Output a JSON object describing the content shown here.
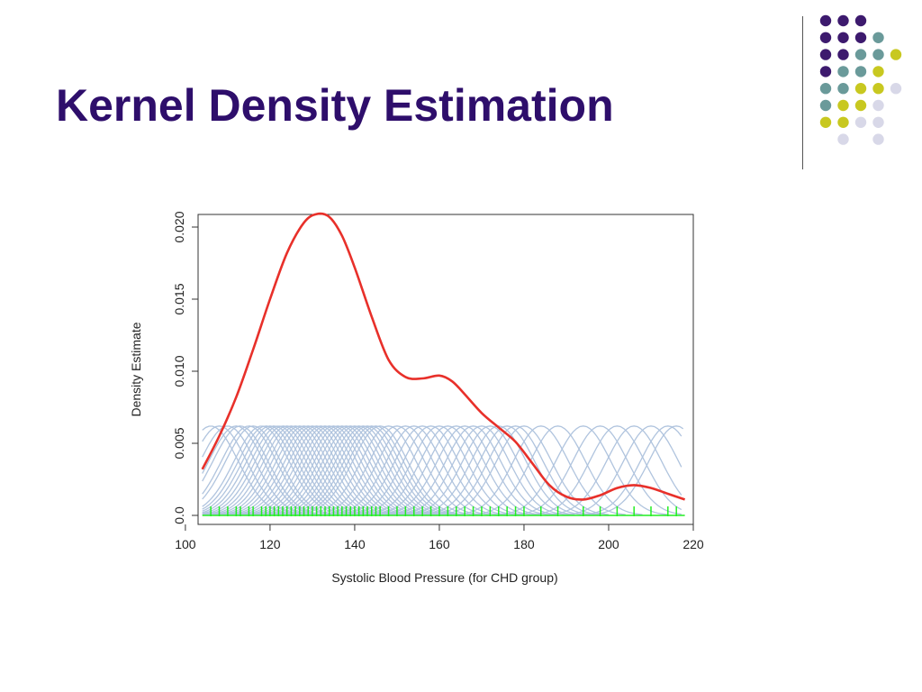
{
  "slide": {
    "title": "Kernel Density Estimation"
  },
  "decoration": {
    "dot_colors": [
      "#3d1a6e",
      "#6a9a9a",
      "#c8c820",
      "#d8d8e8"
    ]
  },
  "chart_data": {
    "type": "line",
    "xlabel": "Systolic Blood Pressure (for CHD group)",
    "ylabel": "Density Estimate",
    "xlim": [
      103,
      220
    ],
    "ylim": [
      0,
      0.0215
    ],
    "x_ticks": [
      100,
      120,
      140,
      160,
      180,
      200,
      220
    ],
    "y_ticks": [
      0.0,
      0.005,
      0.01,
      0.015,
      0.02
    ],
    "y_tick_labels": [
      "0.0",
      "0.005",
      "0.010",
      "0.015",
      "0.020"
    ],
    "grid": false,
    "series": [
      {
        "role": "kde_curve",
        "color": "#e8302a",
        "x": [
          104,
          108,
          112,
          116,
          120,
          124,
          128,
          131,
          134,
          137,
          140,
          144,
          148,
          152,
          156,
          160,
          163,
          166,
          170,
          174,
          178,
          182,
          186,
          190,
          194,
          198,
          202,
          206,
          210,
          214,
          218
        ],
        "y": [
          0.0032,
          0.0055,
          0.0082,
          0.0115,
          0.015,
          0.0182,
          0.0203,
          0.0209,
          0.0207,
          0.0194,
          0.0172,
          0.0138,
          0.0108,
          0.0096,
          0.0095,
          0.0097,
          0.0093,
          0.0084,
          0.0071,
          0.0061,
          0.0051,
          0.0036,
          0.0021,
          0.0013,
          0.0011,
          0.0014,
          0.0019,
          0.0021,
          0.0019,
          0.0015,
          0.0011
        ]
      }
    ],
    "kernel_bumps": {
      "color": "#b0c4de",
      "peak": 0.0062,
      "centers": [
        106,
        108,
        110,
        112,
        113,
        115,
        116,
        118,
        119,
        120,
        121,
        122,
        123,
        124,
        125,
        126,
        127,
        128,
        129,
        130,
        131,
        132,
        133,
        134,
        135,
        136,
        137,
        138,
        139,
        140,
        141,
        142,
        143,
        144,
        145,
        146,
        148,
        150,
        152,
        154,
        156,
        158,
        160,
        162,
        164,
        166,
        168,
        170,
        172,
        174,
        176,
        178,
        180,
        184,
        188,
        194,
        198,
        202,
        206,
        210,
        214,
        216
      ]
    },
    "rug": {
      "color": "#22ee22",
      "x": [
        106,
        108,
        110,
        112,
        113,
        115,
        116,
        118,
        119,
        120,
        121,
        122,
        123,
        124,
        125,
        126,
        127,
        128,
        129,
        130,
        131,
        132,
        133,
        134,
        135,
        136,
        137,
        138,
        139,
        140,
        141,
        142,
        143,
        144,
        145,
        146,
        148,
        150,
        152,
        154,
        156,
        158,
        160,
        162,
        164,
        166,
        168,
        170,
        172,
        174,
        176,
        178,
        180,
        184,
        188,
        194,
        198,
        202,
        206,
        210,
        214,
        216
      ]
    }
  }
}
